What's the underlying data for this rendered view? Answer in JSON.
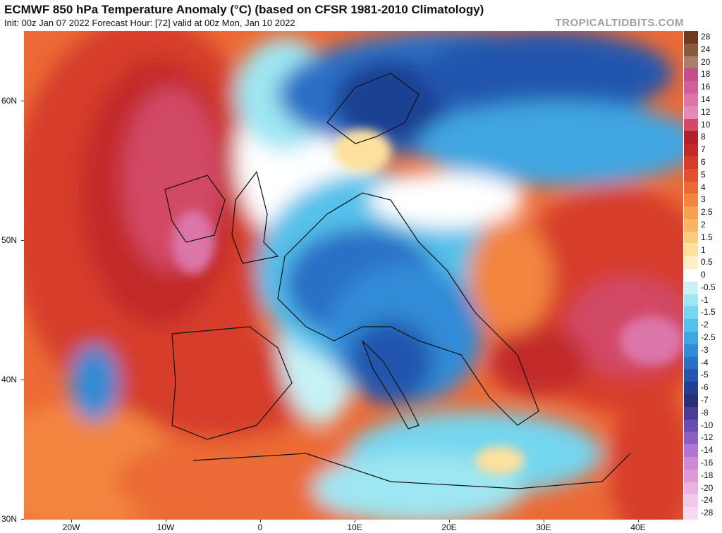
{
  "header": {
    "title": "ECMWF 850 hPa Temperature Anomaly (°C) (based on CFSR 1981-2010 Climatology)",
    "subtitle": "Init: 00z Jan 07 2022   Forecast Hour: [72]   valid at 00z Mon, Jan 10 2022",
    "brand": "TROPICALTIDBITS.COM"
  },
  "map": {
    "lat_labels": [
      "60N",
      "50N",
      "40N",
      "30N"
    ],
    "lon_labels": [
      "20W",
      "10W",
      "0",
      "10E",
      "20E",
      "30E",
      "40E"
    ]
  },
  "colorbar": {
    "entries": [
      {
        "label": "28",
        "color": "#6b3a1f"
      },
      {
        "label": "24",
        "color": "#8a5a3c"
      },
      {
        "label": "20",
        "color": "#a87f6b"
      },
      {
        "label": "18",
        "color": "#c54d8a"
      },
      {
        "label": "16",
        "color": "#d15f98"
      },
      {
        "label": "14",
        "color": "#dc74a8"
      },
      {
        "label": "12",
        "color": "#e58ab8"
      },
      {
        "label": "10",
        "color": "#d24a66"
      },
      {
        "label": "8",
        "color": "#b3202c"
      },
      {
        "label": "7",
        "color": "#c22a2a"
      },
      {
        "label": "6",
        "color": "#d63c2a"
      },
      {
        "label": "5",
        "color": "#e2502e"
      },
      {
        "label": "4",
        "color": "#ec6a35"
      },
      {
        "label": "3",
        "color": "#f3853f"
      },
      {
        "label": "2.5",
        "color": "#f7a04e"
      },
      {
        "label": "2",
        "color": "#f9b562"
      },
      {
        "label": "1.5",
        "color": "#fbcb7e"
      },
      {
        "label": "1",
        "color": "#fde09c"
      },
      {
        "label": "0.5",
        "color": "#fef0c4"
      },
      {
        "label": "0",
        "color": "#ffffff"
      },
      {
        "label": "-0.5",
        "color": "#c8f2f6"
      },
      {
        "label": "-1",
        "color": "#9ee6f2"
      },
      {
        "label": "-1.5",
        "color": "#74d6ef"
      },
      {
        "label": "-2",
        "color": "#54c1ea"
      },
      {
        "label": "-2.5",
        "color": "#3fa6e2"
      },
      {
        "label": "-3",
        "color": "#318bd6"
      },
      {
        "label": "-4",
        "color": "#2a70c6"
      },
      {
        "label": "-5",
        "color": "#2456ae"
      },
      {
        "label": "-6",
        "color": "#1e3f92"
      },
      {
        "label": "-7",
        "color": "#2a2f7a"
      },
      {
        "label": "-8",
        "color": "#4a3c96"
      },
      {
        "label": "-10",
        "color": "#6a4db0"
      },
      {
        "label": "-12",
        "color": "#8a5fc4"
      },
      {
        "label": "-14",
        "color": "#b275d2"
      },
      {
        "label": "-16",
        "color": "#cf8ad6"
      },
      {
        "label": "-18",
        "color": "#de9bd8"
      },
      {
        "label": "-20",
        "color": "#e9b2e0"
      },
      {
        "label": "-24",
        "color": "#f0c8ea"
      },
      {
        "label": "-28",
        "color": "#f5dcf2"
      }
    ]
  }
}
